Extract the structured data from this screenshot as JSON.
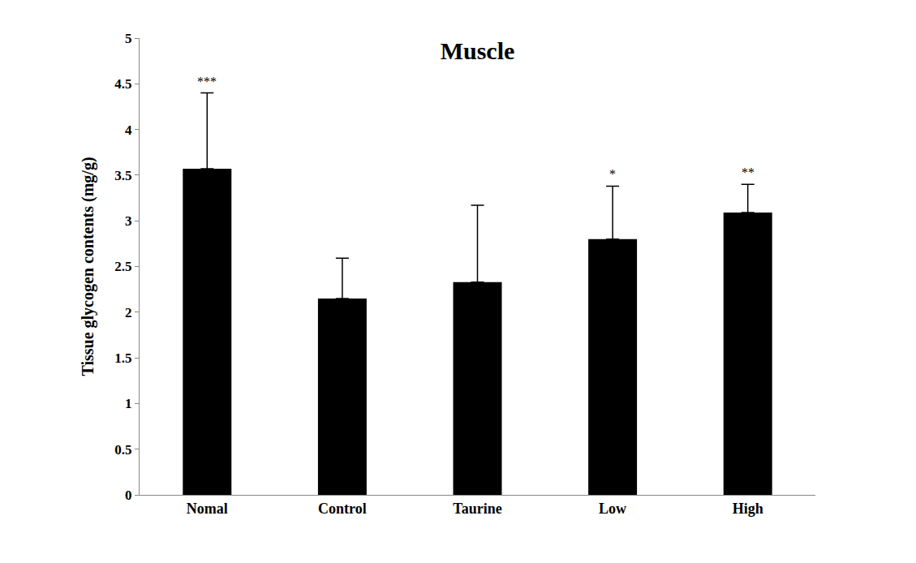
{
  "chart_data": {
    "type": "bar",
    "title": "Muscle",
    "y_label": "Tissue glycogen contents (mg/g)",
    "categories": [
      "Nomal",
      "Control",
      "Taurine",
      "Low",
      "High"
    ],
    "values": [
      3.57,
      2.15,
      2.33,
      2.8,
      3.09
    ],
    "error_plus": [
      0.83,
      0.44,
      0.84,
      0.58,
      0.31
    ],
    "significance": [
      "***",
      null,
      null,
      "*",
      "**"
    ],
    "color": "#000000",
    "ylim": [
      0,
      5
    ],
    "yticks": [
      0,
      0.5,
      1,
      1.5,
      2,
      2.5,
      3,
      3.5,
      4,
      4.5,
      5
    ],
    "grid": false
  }
}
